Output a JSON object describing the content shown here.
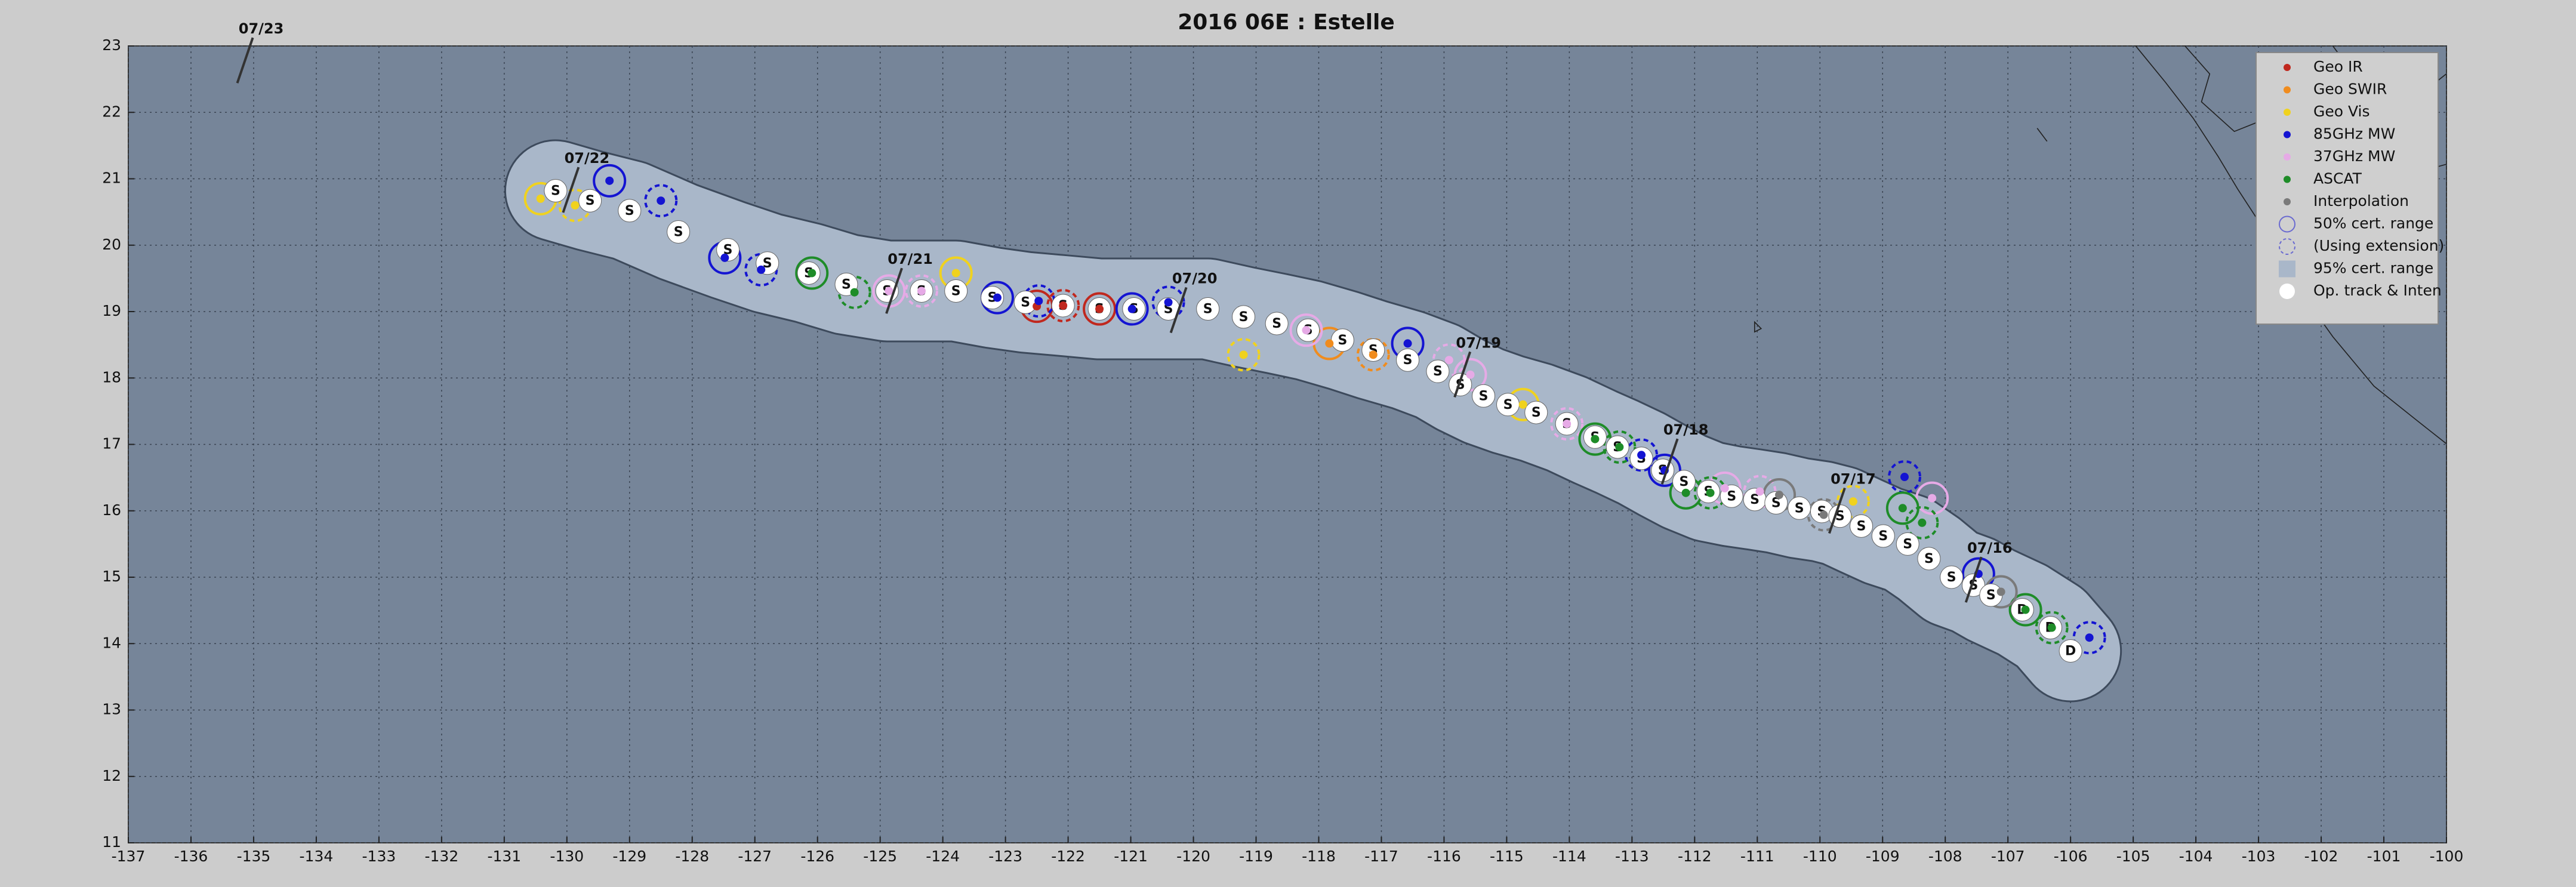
{
  "chart_data": {
    "type": "scatter",
    "title": "2016  06E :  Estelle",
    "xlim": [
      -137,
      -100
    ],
    "xticks": [
      -137,
      -136,
      -135,
      -134,
      -133,
      -132,
      -131,
      -130,
      -129,
      -128,
      -127,
      -126,
      -125,
      -124,
      -123,
      -122,
      -121,
      -120,
      -119,
      -118,
      -117,
      -116,
      -115,
      -114,
      -113,
      -112,
      -111,
      -110,
      -109,
      -108,
      -107,
      -106,
      -105,
      -104,
      -103,
      -102,
      -101,
      -100
    ],
    "ylim": [
      11,
      23
    ],
    "yticks": [
      11,
      12,
      13,
      14,
      15,
      16,
      17,
      18,
      19,
      20,
      21,
      22,
      23
    ],
    "grid": true,
    "legend": "upper right",
    "series": [
      {
        "name": "Geo IR",
        "color": "#c0281e",
        "x": [
          -122.5,
          -122.08,
          -121.5
        ],
        "values": [
          19.08,
          19.09,
          19.04
        ]
      },
      {
        "name": "Geo SWIR",
        "color": "#f08c1e",
        "x": [
          -117.83,
          -117.13
        ],
        "values": [
          18.52,
          18.35
        ]
      },
      {
        "name": "Geo Vis",
        "color": "#f0d21e",
        "x": [
          -130.42,
          -129.87,
          -123.79,
          -119.2,
          -114.74,
          -109.47
        ],
        "values": [
          20.7,
          20.6,
          19.58,
          18.35,
          17.6,
          16.14
        ]
      },
      {
        "name": "85GHz MW",
        "color": "#1414d2",
        "x": [
          -129.32,
          -128.5,
          -127.48,
          -126.9,
          -123.13,
          -122.47,
          -120.98,
          -120.4,
          -116.58,
          -112.85,
          -112.48,
          -108.65,
          -107.47,
          -105.7
        ],
        "values": [
          20.97,
          20.67,
          19.81,
          19.63,
          19.21,
          19.16,
          19.04,
          19.14,
          18.52,
          16.84,
          16.61,
          16.51,
          15.05,
          14.09
        ]
      },
      {
        "name": "37GHz MW",
        "color": "#e6aae6",
        "x": [
          -124.86,
          -124.34,
          -118.2,
          -115.92,
          -115.58,
          -114.04,
          -111.52,
          -110.96,
          -108.21
        ],
        "values": [
          19.31,
          19.31,
          18.72,
          18.27,
          18.05,
          17.31,
          16.34,
          16.29,
          16.19
        ]
      },
      {
        "name": "ASCAT",
        "color": "#1e8c28",
        "x": [
          -126.09,
          -125.41,
          -113.59,
          -113.2,
          -112.14,
          -111.75,
          -108.68,
          -108.37,
          -106.72,
          -106.3
        ],
        "values": [
          19.58,
          19.29,
          17.08,
          16.96,
          16.27,
          16.27,
          16.04,
          15.82,
          14.51,
          14.24
        ]
      },
      {
        "name": "Interpolation",
        "color": "#7a7a7a",
        "x": [
          -110.65,
          -109.94,
          -107.11
        ],
        "values": [
          16.24,
          15.94,
          14.78
        ]
      },
      {
        "name": "Op. track & Inten",
        "color": "#ffffff",
        "x": [
          -130.18,
          -129.63,
          -129.0,
          -128.22,
          -127.43,
          -126.8,
          -126.14,
          -125.54,
          -124.89,
          -124.34,
          -123.79,
          -123.21,
          -122.68,
          -122.08,
          -121.5,
          -120.95,
          -120.4,
          -119.77,
          -119.2,
          -118.67,
          -118.17,
          -117.62,
          -117.13,
          -116.58,
          -116.1,
          -115.74,
          -115.37,
          -114.98,
          -114.53,
          -114.04,
          -113.59,
          -113.23,
          -112.85,
          -112.51,
          -112.17,
          -111.78,
          -111.41,
          -111.04,
          -110.7,
          -110.33,
          -109.97,
          -109.68,
          -109.34,
          -108.99,
          -108.6,
          -108.26,
          -107.9,
          -107.55,
          -107.27,
          -106.77,
          -106.32,
          -106.0
        ],
        "values": [
          20.82,
          20.67,
          20.52,
          20.2,
          19.93,
          19.73,
          19.58,
          19.41,
          19.31,
          19.31,
          19.31,
          19.21,
          19.14,
          19.09,
          19.04,
          19.04,
          19.04,
          19.04,
          18.92,
          18.82,
          18.72,
          18.57,
          18.42,
          18.27,
          18.1,
          17.9,
          17.73,
          17.6,
          17.48,
          17.31,
          17.11,
          16.96,
          16.79,
          16.61,
          16.44,
          16.29,
          16.22,
          16.17,
          16.12,
          16.04,
          15.99,
          15.92,
          15.77,
          15.62,
          15.5,
          15.28,
          15.0,
          14.88,
          14.73,
          14.51,
          14.24,
          13.89
        ],
        "labels": [
          "S",
          "S",
          "S",
          "S",
          "S",
          "S",
          "S",
          "S",
          "S",
          "S",
          "S",
          "S",
          "S",
          "S",
          "S",
          "S",
          "S",
          "S",
          "S",
          "S",
          "S",
          "S",
          "S",
          "S",
          "S",
          "S",
          "S",
          "S",
          "S",
          "S",
          "S",
          "S",
          "S",
          "S",
          "S",
          "S",
          "S",
          "S",
          "S",
          "S",
          "S",
          "S",
          "S",
          "S",
          "S",
          "S",
          "S",
          "S",
          "S",
          "D",
          "D",
          "D"
        ]
      }
    ],
    "range_labels": [
      "50% cert. range",
      "(Using extension)",
      "95% cert. range"
    ],
    "range_color": "#a9b7c9",
    "annotations": [
      {
        "text": "07/23",
        "x": -134.88,
        "y": 23.25
      },
      {
        "text": "07/22",
        "x": -129.68,
        "y": 21.3
      },
      {
        "text": "07/21",
        "x": -124.52,
        "y": 19.78
      },
      {
        "text": "07/20",
        "x": -119.98,
        "y": 19.49
      },
      {
        "text": "07/19",
        "x": -115.45,
        "y": 18.52
      },
      {
        "text": "07/18",
        "x": -112.14,
        "y": 17.21
      },
      {
        "text": "07/17",
        "x": -109.47,
        "y": 16.47
      },
      {
        "text": "07/16",
        "x": -107.29,
        "y": 15.43
      }
    ]
  }
}
